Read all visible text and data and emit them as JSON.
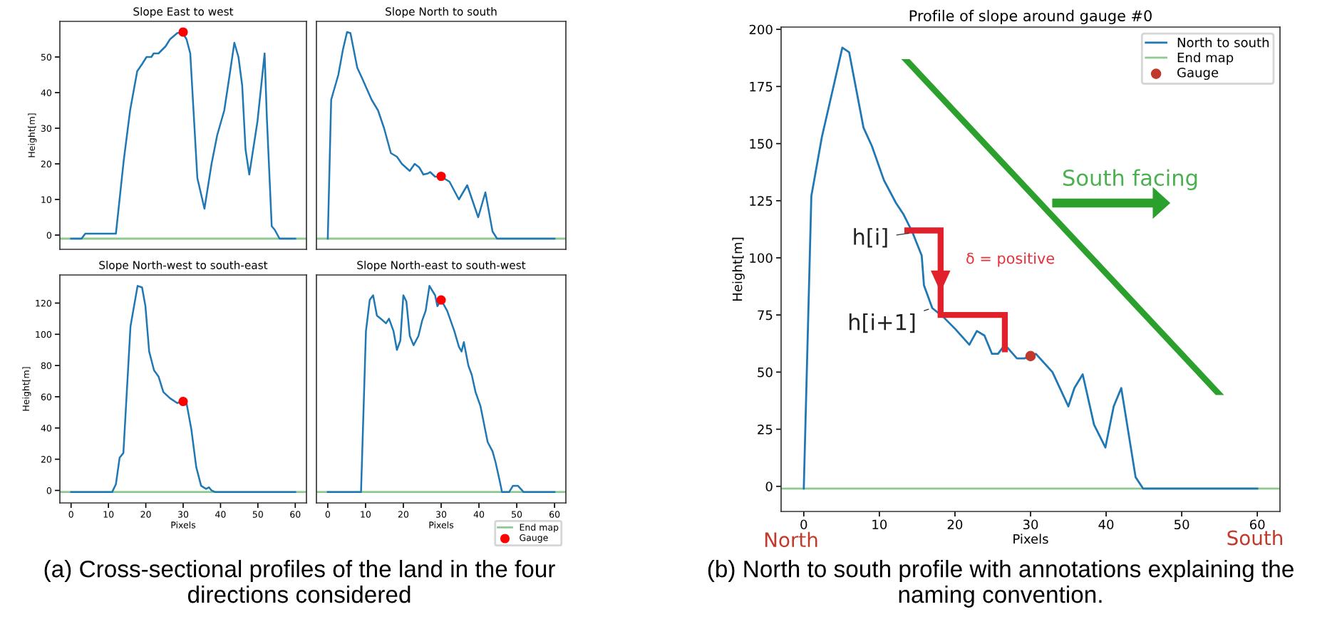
{
  "chart_data": [
    {
      "type": "line",
      "title": "Slope East to west",
      "ylabel": "Height[m]",
      "xlim": [
        -3,
        63
      ],
      "ylim": [
        -4,
        60
      ],
      "xticks": [
        0,
        10,
        20,
        30,
        40,
        50,
        60
      ],
      "yticks": [
        0,
        10,
        20,
        30,
        40,
        50
      ],
      "tick_labels": "y",
      "grid": false,
      "legend": false,
      "series": [
        {
          "color": "#1f77b4",
          "x": [
            0,
            2.8,
            3.8,
            12,
            14.1,
            15.8,
            17.7,
            19,
            20.2,
            21.5,
            22.1,
            23.4,
            25.3,
            26.5,
            28.4,
            29.7,
            30.9,
            31.9,
            33.8,
            35.7,
            37.6,
            39.1,
            41,
            42.3,
            43.7,
            44.8,
            45.8,
            46.7,
            47.7,
            49.9,
            51.8,
            52.4,
            53.7,
            54.5,
            55.8,
            60
          ],
          "values": [
            -1,
            -1,
            0.4,
            0.4,
            21,
            35,
            46,
            48,
            50,
            50,
            51,
            51,
            53,
            55,
            56.7,
            57,
            55,
            51,
            16,
            7.4,
            20,
            28,
            35,
            44,
            54,
            50,
            42,
            24,
            17,
            32,
            51,
            33,
            2.5,
            1.5,
            -1,
            -1
          ]
        },
        {
          "type": "scatter",
          "color": "#ff0000",
          "x": [
            30
          ],
          "values": [
            57
          ]
        }
      ],
      "ref_lines": [
        {
          "axis": "y",
          "value": -1,
          "color": "#90c990"
        }
      ],
      "annotations": [
        "(a) Cross-sectional profiles of the land in the four directions considered"
      ]
    },
    {
      "type": "line",
      "title": "Slope North to south",
      "xlim": [
        -3,
        63
      ],
      "ylim": [
        -4,
        60
      ],
      "xticks": [
        0,
        10,
        20,
        30,
        40,
        50,
        60
      ],
      "yticks": [
        0,
        10,
        20,
        30,
        40,
        50
      ],
      "tick_labels": false,
      "grid": false,
      "legend": false,
      "series": [
        {
          "color": "#1f77b4",
          "x": [
            0,
            0.9,
            2.8,
            4,
            5.1,
            6,
            7.8,
            9.1,
            11.6,
            13.3,
            14.9,
            16.7,
            18.3,
            19.6,
            21.7,
            23,
            24.2,
            25.3,
            26.5,
            27.1,
            28.4,
            30,
            32.2,
            34.7,
            36.9,
            39.8,
            41.7,
            43.6,
            44.8,
            60
          ],
          "values": [
            -1,
            38,
            45,
            52,
            57,
            56.7,
            47,
            44,
            38,
            35,
            30,
            23,
            22,
            20,
            18,
            20,
            19,
            17,
            17.3,
            17.7,
            16.4,
            16.4,
            15,
            10,
            14,
            5,
            12,
            1,
            -1,
            -1
          ]
        },
        {
          "type": "scatter",
          "color": "#ff0000",
          "x": [
            30
          ],
          "values": [
            16.5
          ]
        }
      ],
      "ref_lines": [
        {
          "axis": "y",
          "value": -1,
          "color": "#90c990"
        }
      ]
    },
    {
      "type": "line",
      "title": "Slope North-west to south-east",
      "xlabel": "Pixels",
      "ylabel": "Height[m]",
      "xlim": [
        -3,
        63
      ],
      "ylim": [
        -8,
        138
      ],
      "xticks": [
        0,
        10,
        20,
        30,
        40,
        50,
        60
      ],
      "yticks": [
        0,
        20,
        40,
        60,
        80,
        100,
        120
      ],
      "grid": false,
      "legend": false,
      "series": [
        {
          "color": "#1f77b4",
          "x": [
            0,
            11,
            12,
            13,
            14,
            15.9,
            17.8,
            19,
            19.9,
            20.9,
            22.2,
            23.4,
            24.7,
            26.5,
            28.4,
            29.9,
            30.9,
            32.2,
            33.5,
            34.8,
            36.1,
            36.9,
            37.6,
            38.5,
            60
          ],
          "values": [
            -1,
            -1,
            4,
            21,
            24,
            105,
            131,
            130,
            118,
            89,
            77,
            73,
            63,
            59,
            56,
            57,
            56,
            39,
            15,
            3,
            1,
            2,
            0,
            -1,
            -1
          ]
        },
        {
          "type": "scatter",
          "color": "#ff0000",
          "x": [
            30
          ],
          "values": [
            57
          ]
        }
      ],
      "ref_lines": [
        {
          "axis": "y",
          "value": -1,
          "color": "#90c990"
        }
      ]
    },
    {
      "type": "line",
      "title": "Slope North-east to south-west",
      "xlabel": "Pixels",
      "xlim": [
        -3,
        63
      ],
      "ylim": [
        -8,
        138
      ],
      "xticks": [
        0,
        10,
        20,
        30,
        40,
        50,
        60
      ],
      "yticks": [
        0,
        20,
        40,
        60,
        80,
        100,
        120
      ],
      "tick_labels": "x",
      "grid": false,
      "legend": "bottom right",
      "series": [
        {
          "color": "#1f77b4",
          "x": [
            0,
            8.8,
            10.1,
            11.1,
            12,
            13,
            14.5,
            15.4,
            16.2,
            17.4,
            18.3,
            19.2,
            20,
            20.8,
            21.7,
            22.7,
            24,
            25,
            25.9,
            26.9,
            28.4,
            29,
            30,
            31.6,
            33.5,
            34.7,
            35.4,
            36,
            37.2,
            38.1,
            39.1,
            40.4,
            42.3,
            43.6,
            44.4,
            45.5,
            46.1,
            48,
            49,
            50.3,
            51.8,
            60
          ],
          "values": [
            -1,
            -1,
            102,
            122,
            125,
            112,
            109,
            107,
            110,
            102,
            90,
            96,
            125,
            121,
            99,
            93,
            99,
            109,
            115,
            131,
            125,
            118,
            122,
            115,
            102,
            92,
            89,
            95,
            80,
            74,
            63,
            54,
            31,
            25,
            18,
            6,
            -1,
            -1,
            3,
            3,
            -1,
            -1
          ]
        },
        {
          "type": "scatter",
          "name": "Gauge",
          "color": "#ff0000",
          "x": [
            30
          ],
          "values": [
            122
          ]
        }
      ],
      "ref_lines": [
        {
          "axis": "y",
          "value": -1,
          "label": "End map",
          "color": "#90c990"
        }
      ]
    },
    {
      "type": "line",
      "title": "Profile of slope around gauge #0",
      "xlabel": "Pixels",
      "ylabel": "Height[m]",
      "xlim": [
        -3,
        63
      ],
      "ylim": [
        -11,
        201
      ],
      "xticks": [
        0,
        10,
        20,
        30,
        40,
        50,
        60
      ],
      "yticks": [
        0,
        25,
        50,
        75,
        100,
        125,
        150,
        175,
        200
      ],
      "grid": false,
      "legend": "top right",
      "series": [
        {
          "name": "North to south",
          "color": "#1f77b4",
          "x": [
            0,
            1,
            2.4,
            4,
            5.1,
            6,
            7.9,
            9,
            10.6,
            12.2,
            13.2,
            14.4,
            15.6,
            15.9,
            17,
            18.5,
            20,
            21.9,
            22.9,
            23.9,
            24.9,
            25.7,
            26.6,
            28.2,
            29.2,
            30.7,
            32.9,
            35,
            35.8,
            36.9,
            38.4,
            39.9,
            41,
            42,
            43.9,
            44.9,
            60
          ],
          "values": [
            -1,
            127,
            153,
            176,
            192,
            190,
            157,
            149,
            134,
            124,
            119,
            111,
            101,
            88,
            78,
            74,
            69,
            62,
            68,
            66,
            58,
            58,
            62,
            56,
            56,
            58,
            50,
            35,
            43,
            49,
            27,
            17,
            35,
            43,
            4,
            -1,
            -1
          ]
        },
        {
          "type": "scatter",
          "name": "Gauge",
          "color": "#c0392b",
          "x": [
            30
          ],
          "values": [
            57
          ]
        }
      ],
      "ref_lines": [
        {
          "axis": "y",
          "value": -1,
          "label": "End map",
          "color": "#90c990"
        }
      ],
      "annotations": [
        {
          "text": "h[i]",
          "x": 14.4,
          "y": 111
        },
        {
          "text": "h[i+1]",
          "x": 17,
          "y": 78
        },
        "δ = positive",
        "South facing",
        "North",
        "South",
        "(b) North to south profile with annotations explaining the naming convention."
      ]
    }
  ]
}
